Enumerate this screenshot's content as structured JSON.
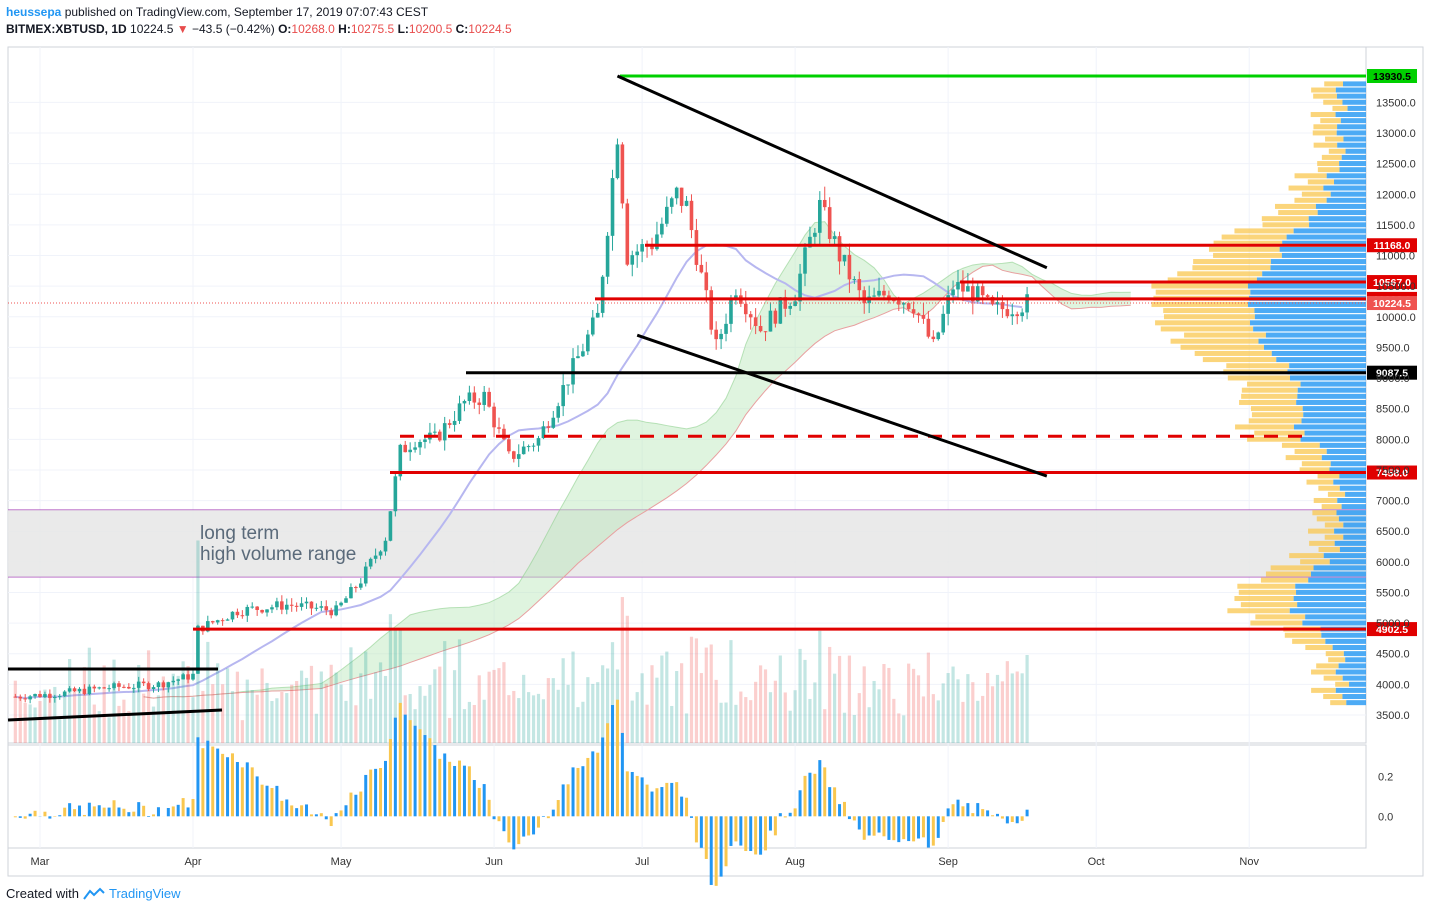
{
  "header": {
    "author": "heussepa",
    "published_text": "published on TradingView.com, September 17, 2019 07:07:43 CEST",
    "symbol": "BITMEX:XBTUSD, 1D",
    "last": "10224.5",
    "change_arrow": "▼",
    "change": "−43.5 (−0.42%)",
    "open_label": "O:",
    "open": "10268.0",
    "high_label": "H:",
    "high": "10275.5",
    "low_label": "L:",
    "low": "10200.5",
    "close_label": "C:",
    "close": "10224.5"
  },
  "footer": {
    "created_with": "Created with",
    "brand": "TradingView",
    "logo_icon": "tradingview-logo-icon"
  },
  "colors": {
    "up": "#26a69a",
    "down": "#ef5350",
    "resistance": "#e00000",
    "support": "#000000",
    "ath": "#00d000",
    "profile_up": "#2196f3",
    "profile_down": "#f9c74f",
    "cloud_bull": "#b8e6b8",
    "cloud_bear": "#f4b6b6"
  },
  "annotation": {
    "line1": "long term",
    "line2": "high volume range"
  },
  "chart_data": {
    "type": "line",
    "chart_style": "candlestick with Ichimoku cloud, volume, volume profile and oscillator",
    "title": "",
    "ylabel": "",
    "xlabel": "",
    "yscale": "linear",
    "ylim": [
      3200,
      14200
    ],
    "y_ticks": [
      3500,
      4000,
      4500,
      5000,
      5500,
      6000,
      6500,
      7000,
      7500,
      8000,
      8500,
      9000,
      9500,
      10000,
      10500,
      11000,
      11500,
      12000,
      12500,
      13000,
      13500
    ],
    "y_tick_labels": [
      "3500.0",
      "4000.0",
      "4500.0",
      "5000.0",
      "5500.0",
      "6000.0",
      "6500.0",
      "7000.0",
      "7500.0",
      "8000.0",
      "8500.0",
      "9000.0",
      "9500.0",
      "10000.0",
      "10500.0",
      "11000.0",
      "11500.0",
      "12000.0",
      "12500.0",
      "13000.0",
      "13500.0"
    ],
    "x_month_labels": [
      {
        "label": "Mar",
        "date": "2019-03-01"
      },
      {
        "label": "Apr",
        "date": "2019-04-01"
      },
      {
        "label": "May",
        "date": "2019-05-01"
      },
      {
        "label": "Jun",
        "date": "2019-06-01"
      },
      {
        "label": "Jul",
        "date": "2019-07-01"
      },
      {
        "label": "Aug",
        "date": "2019-08-01"
      },
      {
        "label": "Sep",
        "date": "2019-09-01"
      },
      {
        "label": "Oct",
        "date": "2019-10-01"
      },
      {
        "label": "Nov",
        "date": "2019-11-01"
      }
    ],
    "price_series": {
      "name": "",
      "x": [
        "2019-02-24",
        "2019-03-05",
        "2019-03-15",
        "2019-03-25",
        "2019-04-01",
        "2019-04-02",
        "2019-04-10",
        "2019-04-20",
        "2019-04-30",
        "2019-05-05",
        "2019-05-10",
        "2019-05-13",
        "2019-05-16",
        "2019-05-20",
        "2019-05-26",
        "2019-05-30",
        "2019-06-04",
        "2019-06-10",
        "2019-06-16",
        "2019-06-22",
        "2019-06-26",
        "2019-06-28",
        "2019-07-03",
        "2019-07-08",
        "2019-07-10",
        "2019-07-16",
        "2019-07-20",
        "2019-07-25",
        "2019-08-01",
        "2019-08-06",
        "2019-08-10",
        "2019-08-15",
        "2019-08-20",
        "2019-08-25",
        "2019-08-29",
        "2019-09-02",
        "2019-09-06",
        "2019-09-10",
        "2019-09-17"
      ],
      "y": [
        3800,
        3850,
        3950,
        4000,
        4150,
        4900,
        5200,
        5300,
        5200,
        5700,
        6400,
        7800,
        8000,
        8000,
        8600,
        8700,
        7700,
        8000,
        9000,
        10000,
        13000,
        11000,
        11200,
        12000,
        11800,
        9500,
        10500,
        9800,
        10400,
        11800,
        11000,
        10200,
        10400,
        10200,
        9500,
        10500,
        10400,
        10100,
        10224.5
      ]
    },
    "key_levels": [
      {
        "value": 13930.5,
        "label": "13930.5",
        "kind": "ath"
      },
      {
        "value": 11168.0,
        "label": "11168.0",
        "kind": "resistance"
      },
      {
        "value": 10567.0,
        "label": "10567.0",
        "kind": "resistance"
      },
      {
        "value": 10292.0,
        "label": "10292.0",
        "kind": "resistance"
      },
      {
        "value": 10224.5,
        "label": "10224.5",
        "kind": "last"
      },
      {
        "value": 9087.5,
        "label": "9087.5",
        "kind": "support"
      },
      {
        "value": 7458.0,
        "label": "7458.0",
        "kind": "resistance"
      },
      {
        "value": 4902.5,
        "label": "4902.5",
        "kind": "resistance"
      }
    ],
    "dashed_level": 8050,
    "high_volume_range": [
      5750,
      6850
    ],
    "triangle_upper": {
      "x": [
        "2019-06-26",
        "2019-09-21"
      ],
      "y": [
        13930,
        10800
      ]
    },
    "triangle_lower": {
      "x": [
        "2019-06-30",
        "2019-09-21"
      ],
      "y": [
        9700,
        7400
      ]
    },
    "oscillator": {
      "y_ticks": [
        0.0,
        0.2
      ],
      "y_tick_labels": [
        "0.0",
        "0.2"
      ],
      "ylim": [
        -0.16,
        0.36
      ]
    }
  }
}
